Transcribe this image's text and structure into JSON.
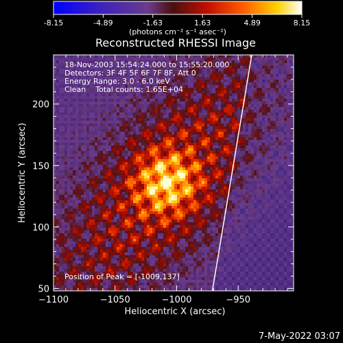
{
  "colorbar": {
    "ticks": [
      "-8.15",
      "-4.89",
      "-1.63",
      "1.63",
      "4.89",
      "8.15"
    ],
    "unit_label": "(photons cm⁻² s⁻¹ asec⁻²)",
    "range": [
      -8.15,
      8.15
    ],
    "colors": [
      "#0000ff",
      "#5a2aa8",
      "#6a3c8a",
      "#8a1a1a",
      "#ff2000",
      "#ff9a00",
      "#ffff40",
      "#ffffff"
    ]
  },
  "chart_data": {
    "type": "heatmap",
    "title": "Reconstructed RHESSI Image",
    "xlabel": "Heliocentric X (arcsec)",
    "ylabel": "Heliocentric Y (arcsec)",
    "xlim": [
      -1100,
      -905
    ],
    "ylim": [
      48,
      240
    ],
    "xticks": [
      -1100,
      -1050,
      -1000,
      -950
    ],
    "xtick_labels": [
      "−1100",
      "−1050",
      "−1000",
      "−950"
    ],
    "yticks": [
      50,
      100,
      150,
      200
    ],
    "ytick_labels": [
      "50",
      "100",
      "150",
      "200"
    ],
    "info_lines": [
      "18-Nov-2003 15:54:24.000 to 15:55:20.000",
      "Detectors: 3F 4F 5F 6F 7F 8F, Att 0",
      "Energy Range: 3.0 - 6.0 keV",
      "Clean    Total counts: 1.65E+04"
    ],
    "peak_label": "Position of Peak = [-1009,137]",
    "peak": [
      -1009,
      137
    ],
    "limb_line": [
      [
        -971,
        48
      ],
      [
        -939,
        240
      ]
    ]
  },
  "footer": {
    "date": "7-May-2022 03:07"
  }
}
